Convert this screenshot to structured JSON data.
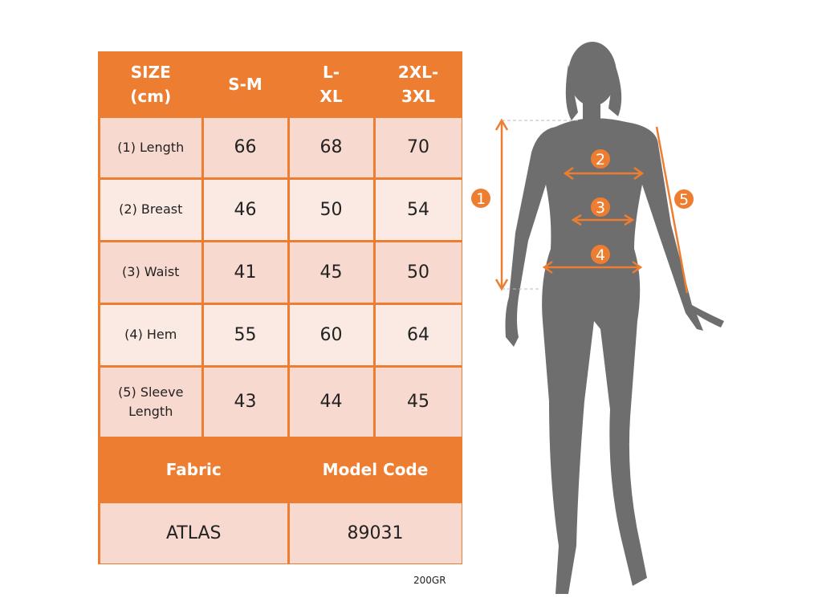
{
  "table": {
    "header": [
      "SIZE (cm)",
      "S-M",
      "L-XL",
      "2XL-3XL"
    ],
    "rows": [
      {
        "label": "(1) Length",
        "values": [
          "66",
          "68",
          "70"
        ]
      },
      {
        "label": "(2) Breast",
        "values": [
          "46",
          "50",
          "54"
        ]
      },
      {
        "label": "(3) Waist",
        "values": [
          "41",
          "45",
          "50"
        ]
      },
      {
        "label": "(4) Hem",
        "values": [
          "55",
          "60",
          "64"
        ]
      },
      {
        "label": "(5) Sleeve Length",
        "values": [
          "43",
          "44",
          "45"
        ]
      }
    ],
    "footer_header": [
      "Fabric",
      "Model Code"
    ],
    "footer_values": [
      "ATLAS",
      "89031"
    ]
  },
  "note": "200GR",
  "figure": {
    "markers": [
      "1",
      "2",
      "3",
      "4",
      "5"
    ]
  },
  "colors": {
    "accent": "#ED7D31",
    "cell_dark": "#F8D9CF",
    "cell_light": "#FBEAE4",
    "silhouette": "#6E6E6E"
  }
}
